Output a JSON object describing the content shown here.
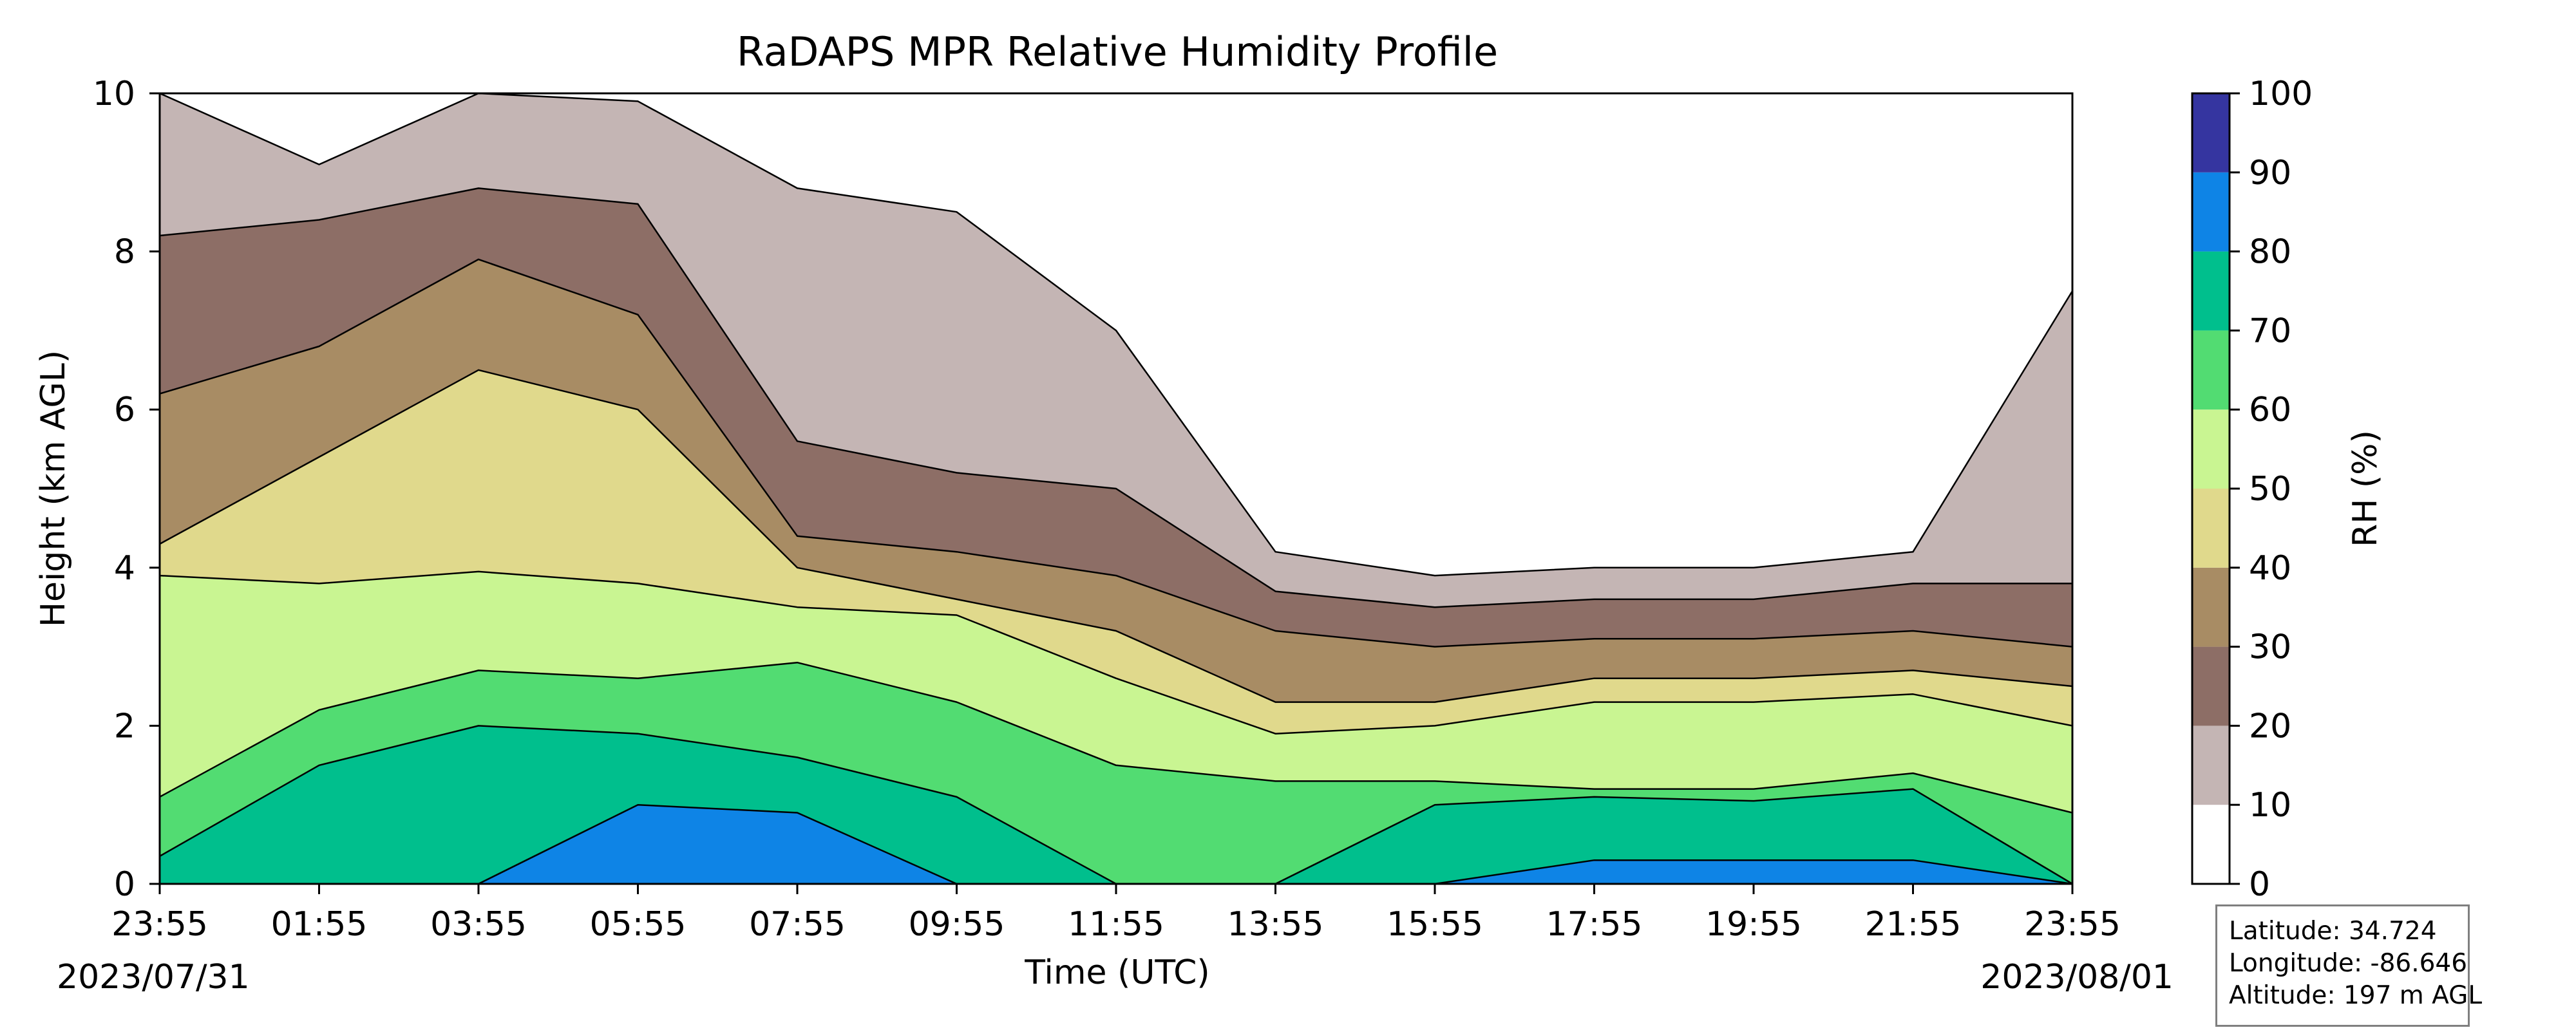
{
  "chart_data": {
    "type": "contour",
    "title": "RaDAPS MPR Relative Humidity Profile",
    "xlabel": "Time (UTC)",
    "ylabel": "Height (km AGL)",
    "colorbar_label": "RH (%)",
    "date_start": "2023/07/31",
    "date_end": "2023/08/01",
    "x_ticks": [
      "23:55",
      "01:55",
      "03:55",
      "05:55",
      "07:55",
      "09:55",
      "11:55",
      "13:55",
      "15:55",
      "17:55",
      "19:55",
      "21:55",
      "23:55"
    ],
    "y_ticks": [
      "0",
      "2",
      "4",
      "6",
      "8",
      "10"
    ],
    "ylim": [
      0,
      10
    ],
    "levels": [
      0,
      10,
      20,
      30,
      40,
      50,
      60,
      70,
      80,
      90,
      100
    ],
    "level_labels": [
      "0",
      "10",
      "20",
      "30",
      "40",
      "50",
      "60",
      "70",
      "80",
      "90",
      "100"
    ],
    "level_colors": [
      "#ffffff",
      "#c4b5b4",
      "#8d6e66",
      "#a88c64",
      "#e0d98c",
      "#c9f592",
      "#52dc72",
      "#00bf8d",
      "#0e84e6",
      "#3535a0"
    ],
    "profiles": [
      {
        "time": "23:55",
        "thresholds_km": [
          10.0,
          10.0,
          8.2,
          6.2,
          4.3,
          3.9,
          1.1,
          0.35,
          0.0,
          0.0
        ]
      },
      {
        "time": "01:55",
        "thresholds_km": [
          10.0,
          9.1,
          8.4,
          6.8,
          5.4,
          3.8,
          2.2,
          1.5,
          0.0,
          0.0
        ]
      },
      {
        "time": "03:55",
        "thresholds_km": [
          10.0,
          10.0,
          8.8,
          7.9,
          6.5,
          3.95,
          2.7,
          2.0,
          0.0,
          0.0
        ]
      },
      {
        "time": "05:55",
        "thresholds_km": [
          10.0,
          9.9,
          8.6,
          7.2,
          6.0,
          3.8,
          2.6,
          1.9,
          1.0,
          0.0
        ]
      },
      {
        "time": "07:55",
        "thresholds_km": [
          10.0,
          8.8,
          5.6,
          4.4,
          4.0,
          3.5,
          2.8,
          1.6,
          0.9,
          0.0
        ]
      },
      {
        "time": "09:55",
        "thresholds_km": [
          10.0,
          8.5,
          5.2,
          4.2,
          3.6,
          3.4,
          2.3,
          1.1,
          0.0,
          0.0
        ]
      },
      {
        "time": "11:55",
        "thresholds_km": [
          10.0,
          7.0,
          5.0,
          3.9,
          3.2,
          2.6,
          1.5,
          0.0,
          0.0,
          0.0
        ]
      },
      {
        "time": "13:55",
        "thresholds_km": [
          10.0,
          4.2,
          3.7,
          3.2,
          2.3,
          1.9,
          1.3,
          0.0,
          0.0,
          0.0
        ]
      },
      {
        "time": "15:55",
        "thresholds_km": [
          9.0,
          3.9,
          3.5,
          3.0,
          2.3,
          2.0,
          1.3,
          1.0,
          0.0,
          0.0
        ]
      },
      {
        "time": "17:55",
        "thresholds_km": [
          8.9,
          4.0,
          3.6,
          3.1,
          2.6,
          2.3,
          1.2,
          1.1,
          0.3,
          0.0
        ]
      },
      {
        "time": "19:55",
        "thresholds_km": [
          8.8,
          4.0,
          3.6,
          3.1,
          2.6,
          2.3,
          1.2,
          1.05,
          0.3,
          0.0
        ]
      },
      {
        "time": "21:55",
        "thresholds_km": [
          10.0,
          4.2,
          3.8,
          3.2,
          2.7,
          2.4,
          1.4,
          1.2,
          0.3,
          0.0
        ]
      },
      {
        "time": "23:55",
        "thresholds_km": [
          10.0,
          7.5,
          3.8,
          3.0,
          2.5,
          2.0,
          0.9,
          0.0,
          0.0,
          0.0
        ]
      }
    ],
    "colorbar": "right",
    "grid": false
  },
  "info": {
    "latitude": "Latitude: 34.724",
    "longitude": "Longitude: -86.646",
    "altitude": "Altitude: 197 m AGL"
  }
}
